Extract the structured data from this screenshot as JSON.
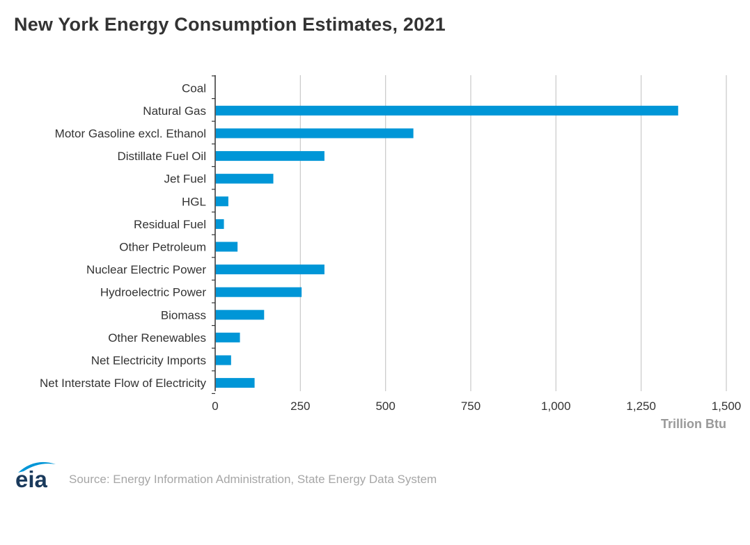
{
  "chart_data": {
    "type": "bar",
    "orientation": "horizontal",
    "title": "New York Energy Consumption Estimates, 2021",
    "categories": [
      "Coal",
      "Natural Gas",
      "Motor Gasoline excl. Ethanol",
      "Distillate Fuel Oil",
      "Jet Fuel",
      "HGL",
      "Residual Fuel",
      "Other Petroleum",
      "Nuclear Electric Power",
      "Hydroelectric Power",
      "Biomass",
      "Other Renewables",
      "Net Electricity Imports",
      "Net Interstate Flow of Electricity"
    ],
    "values": [
      0,
      1357,
      580,
      319,
      169,
      37,
      24,
      64,
      319,
      252,
      142,
      71,
      45,
      114
    ],
    "xlabel": "Trillion Btu",
    "ylabel": "",
    "xlim": [
      0,
      1500
    ],
    "xticks": [
      0,
      250,
      500,
      750,
      1000,
      1250,
      1500
    ],
    "xtick_labels": [
      "0",
      "250",
      "500",
      "750",
      "1,000",
      "1,250",
      "1,500"
    ],
    "grid": true,
    "legend": "none",
    "colors": {
      "bar": "#0096d7",
      "grid": "#c8c8c8",
      "axis": "#333333",
      "label": "#333333",
      "axis_title": "#999999"
    }
  },
  "footer": {
    "logo_text": "eia",
    "source": "Source: Energy Information Administration, State Energy Data System"
  },
  "colors": {
    "logo_text": "#1a3a5c",
    "logo_arc": "#0096d7",
    "source_text": "#a6a6a6"
  }
}
